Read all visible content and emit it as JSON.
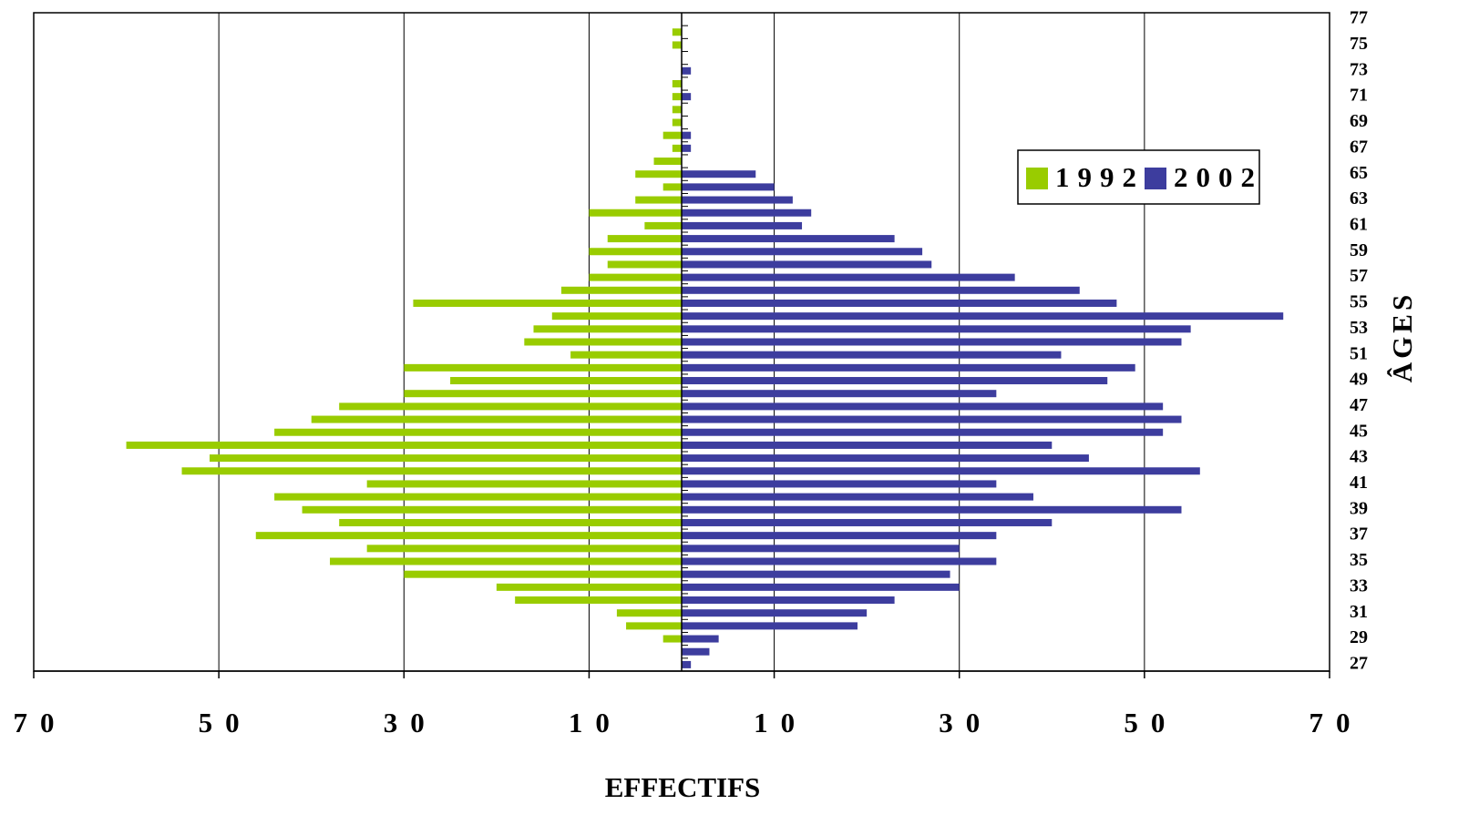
{
  "chart_data": {
    "type": "pyramid",
    "x_label": "EFFECTIFS",
    "y_label": "ÂGES",
    "categories": [
      "27",
      null,
      "29",
      null,
      "31",
      null,
      "33",
      null,
      "35",
      null,
      "37",
      null,
      "39",
      null,
      "41",
      null,
      "43",
      null,
      "45",
      null,
      "47",
      null,
      "49",
      null,
      "51",
      null,
      "53",
      null,
      "55",
      null,
      "57",
      null,
      "59",
      null,
      "61",
      null,
      "63",
      null,
      "65",
      null,
      "67",
      null,
      "69",
      null,
      "71",
      null,
      "73",
      null,
      "75",
      null,
      "77"
    ],
    "series": [
      {
        "name": "1992",
        "color": "#99cc00",
        "values": [
          0,
          0,
          2,
          6,
          7,
          18,
          20,
          30,
          38,
          34,
          46,
          37,
          41,
          44,
          34,
          54,
          51,
          60,
          44,
          40,
          37,
          30,
          25,
          30,
          12,
          17,
          16,
          14,
          29,
          13,
          10,
          8,
          10,
          8,
          4,
          10,
          5,
          2,
          5,
          3,
          1,
          2,
          1,
          1,
          1,
          1,
          0,
          0,
          1,
          1,
          0
        ]
      },
      {
        "name": "2002",
        "color": "#3d3d9e",
        "values": [
          1,
          3,
          4,
          19,
          20,
          23,
          30,
          29,
          34,
          30,
          34,
          40,
          54,
          38,
          34,
          56,
          44,
          40,
          52,
          54,
          52,
          34,
          46,
          49,
          41,
          54,
          55,
          65,
          47,
          43,
          36,
          27,
          26,
          23,
          13,
          14,
          12,
          10,
          8,
          0,
          1,
          1,
          0,
          0,
          1,
          0,
          1,
          0,
          0,
          0,
          0
        ]
      }
    ],
    "xlim": [
      -70,
      70
    ],
    "xticks": [
      {
        "value": -70,
        "label": "70"
      },
      {
        "value": -50,
        "label": "50"
      },
      {
        "value": -30,
        "label": "30"
      },
      {
        "value": -10,
        "label": "10"
      },
      10,
      30,
      50,
      70
    ],
    "grid": true
  }
}
